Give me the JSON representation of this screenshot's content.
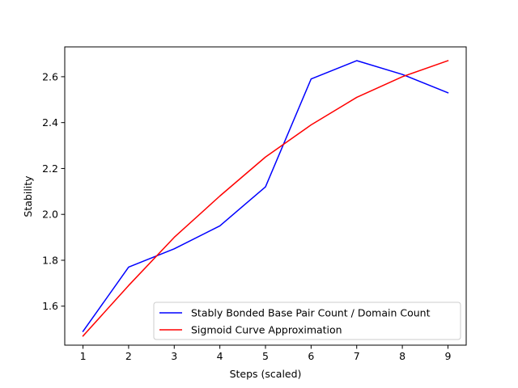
{
  "chart_data": {
    "type": "line",
    "title": "",
    "xlabel": "Steps (scaled)",
    "ylabel": "Stability",
    "x": [
      1,
      2,
      3,
      4,
      5,
      6,
      7,
      8,
      9
    ],
    "xticks": [
      1,
      2,
      3,
      4,
      5,
      6,
      7,
      8,
      9
    ],
    "yticks": [
      1.6,
      1.8,
      2.0,
      2.2,
      2.4,
      2.6
    ],
    "ytick_labels": [
      "1.6",
      "1.8",
      "2.0",
      "2.2",
      "2.4",
      "2.6"
    ],
    "xlim": [
      0.6,
      9.4
    ],
    "ylim": [
      1.43,
      2.73
    ],
    "grid": false,
    "legend_position": "lower-right",
    "series": [
      {
        "name": "Stably Bonded Base Pair Count / Domain Count",
        "color": "#0000ff",
        "values": [
          1.49,
          1.77,
          1.85,
          1.95,
          2.12,
          2.59,
          2.67,
          2.61,
          2.53
        ]
      },
      {
        "name": "Sigmoid Curve Approximation",
        "color": "#ff0000",
        "values": [
          1.47,
          1.69,
          1.9,
          2.08,
          2.25,
          2.39,
          2.51,
          2.6,
          2.67
        ]
      }
    ]
  }
}
